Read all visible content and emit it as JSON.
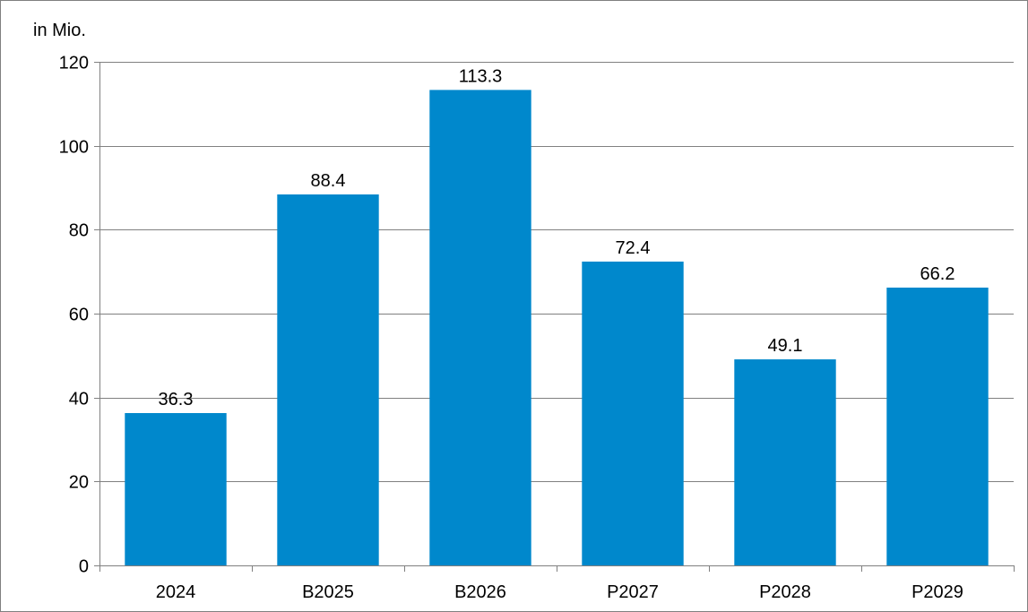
{
  "chart_data": {
    "type": "bar",
    "title": "",
    "unit_label": "in Mio.",
    "xlabel": "",
    "ylabel": "",
    "categories": [
      "2024",
      "B2025",
      "B2026",
      "P2027",
      "P2028",
      "P2029"
    ],
    "values": [
      36.3,
      88.4,
      113.3,
      72.4,
      49.1,
      66.2
    ],
    "value_labels": [
      "36.3",
      "88.4",
      "113.3",
      "72.4",
      "49.1",
      "66.2"
    ],
    "ylim": [
      0,
      120
    ],
    "yticks": [
      0,
      20,
      40,
      60,
      80,
      100,
      120
    ],
    "grid": true,
    "legend": "none",
    "bar_color": "#0088CC",
    "gridline_color": "#808080",
    "border_color": "#808080"
  }
}
